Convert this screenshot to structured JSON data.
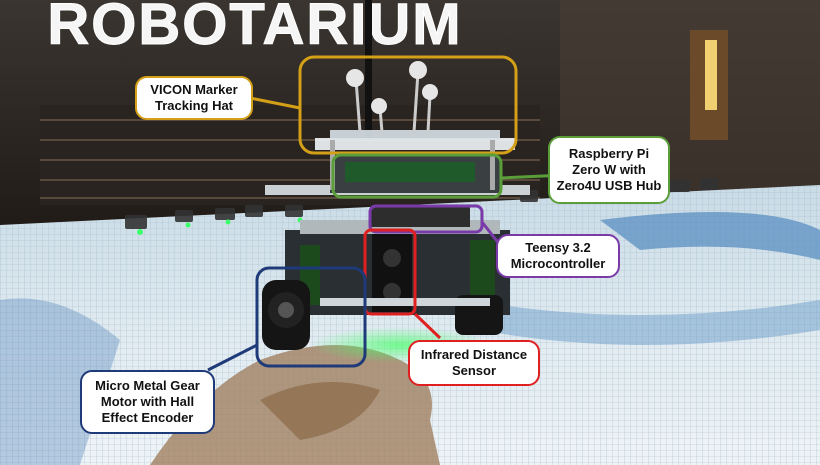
{
  "photo": {
    "sign_text": "ROBOTARIUM",
    "subject": "GRITSBot robot on projected arena floor"
  },
  "callouts": [
    {
      "id": "vicon",
      "lines": [
        "VICON Marker",
        "Tracking Hat"
      ],
      "color": "#d4a017"
    },
    {
      "id": "rpi",
      "lines": [
        "Raspberry Pi",
        "Zero W with",
        "Zero4U USB Hub"
      ],
      "color": "#5a9e3a"
    },
    {
      "id": "teensy",
      "lines": [
        "Teensy 3.2",
        "Microcontroller"
      ],
      "color": "#7a3aa8"
    },
    {
      "id": "ir",
      "lines": [
        "Infrared Distance",
        "Sensor"
      ],
      "color": "#e02020"
    },
    {
      "id": "motor",
      "lines": [
        "Micro Metal Gear",
        "Motor with Hall",
        "Effect Encoder"
      ],
      "color": "#1f3a78"
    }
  ]
}
